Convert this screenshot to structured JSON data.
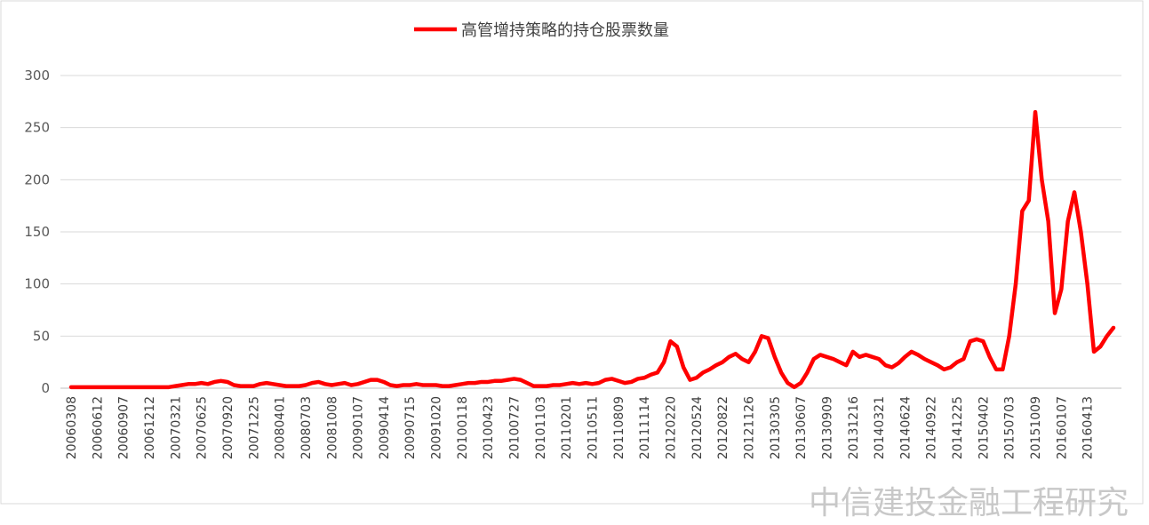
{
  "chart_data": {
    "type": "line",
    "series": [
      {
        "name": "高管增持策略的持仓股票数量",
        "color": "#ff0000",
        "values": [
          1,
          1,
          1,
          1,
          1,
          1,
          1,
          1,
          1,
          1,
          1,
          1,
          1,
          1,
          1,
          1,
          2,
          3,
          4,
          4,
          5,
          4,
          6,
          7,
          6,
          3,
          2,
          2,
          2,
          4,
          5,
          4,
          3,
          2,
          2,
          2,
          3,
          5,
          6,
          4,
          3,
          4,
          5,
          3,
          4,
          6,
          8,
          8,
          6,
          3,
          2,
          3,
          3,
          4,
          3,
          3,
          3,
          2,
          2,
          3,
          4,
          5,
          5,
          6,
          6,
          7,
          7,
          8,
          9,
          8,
          5,
          2,
          2,
          2,
          3,
          3,
          4,
          5,
          4,
          5,
          4,
          5,
          8,
          9,
          7,
          5,
          6,
          9,
          10,
          13,
          15,
          25,
          45,
          40,
          20,
          8,
          10,
          15,
          18,
          22,
          25,
          30,
          33,
          28,
          25,
          35,
          50,
          48,
          30,
          15,
          5,
          1,
          5,
          15,
          28,
          32,
          30,
          28,
          25,
          22,
          35,
          30,
          32,
          30,
          28,
          22,
          20,
          24,
          30,
          35,
          32,
          28,
          25,
          22,
          18,
          20,
          25,
          28,
          45,
          47,
          45,
          30,
          18,
          18,
          50,
          100,
          170,
          180,
          265,
          200,
          160,
          72,
          95,
          160,
          188,
          150,
          100,
          35,
          40,
          50,
          58
        ]
      }
    ],
    "categories": [
      "20060308",
      null,
      null,
      null,
      "20060612",
      null,
      null,
      null,
      "20060907",
      null,
      null,
      null,
      "20061212",
      null,
      null,
      null,
      "20070321",
      null,
      null,
      null,
      "20070625",
      null,
      null,
      null,
      "20070920",
      null,
      null,
      null,
      "20071225",
      null,
      null,
      null,
      "20080401",
      null,
      null,
      null,
      "20080703",
      null,
      null,
      null,
      "20081008",
      null,
      null,
      null,
      "20090107",
      null,
      null,
      null,
      "20090414",
      null,
      null,
      null,
      "20090715",
      null,
      null,
      null,
      "20091020",
      null,
      null,
      null,
      "20100118",
      null,
      null,
      null,
      "20100423",
      null,
      null,
      null,
      "20100727",
      null,
      null,
      null,
      "20101103",
      null,
      null,
      null,
      "20110201",
      null,
      null,
      null,
      "20110511",
      null,
      null,
      null,
      "20110809",
      null,
      null,
      null,
      "20111114",
      null,
      null,
      null,
      "20120220",
      null,
      null,
      null,
      "20120524",
      null,
      null,
      null,
      "20120822",
      null,
      null,
      null,
      "20121126",
      null,
      null,
      null,
      "20130305",
      null,
      null,
      null,
      "20130607",
      null,
      null,
      null,
      "20130909",
      null,
      null,
      null,
      "20131216",
      null,
      null,
      null,
      "20140321",
      null,
      null,
      null,
      "20140624",
      null,
      null,
      null,
      "20140922",
      null,
      null,
      null,
      "20141225",
      null,
      null,
      null,
      "20150402",
      null,
      null,
      null,
      "20150703",
      null,
      null,
      null,
      "20151009",
      null,
      null,
      null,
      "20160107",
      null,
      null,
      null,
      "20160413",
      null,
      null,
      null,
      null
    ],
    "ylim": [
      0,
      300
    ],
    "yticks": [
      0,
      50,
      100,
      150,
      200,
      250,
      300
    ],
    "grid": true,
    "legend": "top",
    "watermark": "中信建投金融工程研究"
  }
}
